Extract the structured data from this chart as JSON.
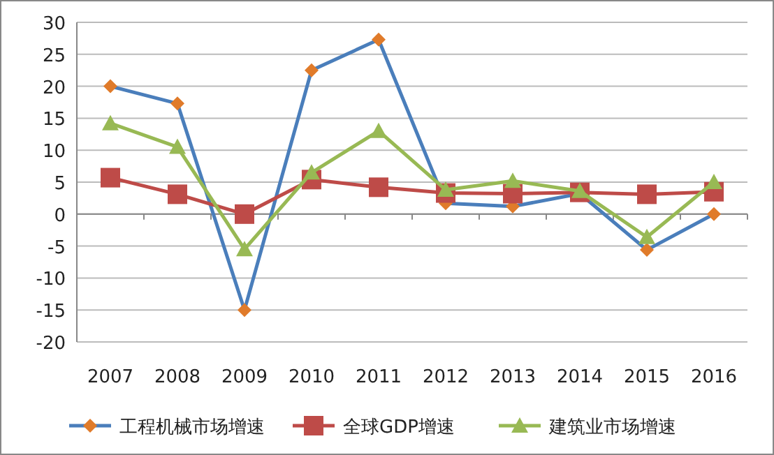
{
  "chart_data": {
    "type": "line",
    "categories": [
      "2007",
      "2008",
      "2009",
      "2010",
      "2011",
      "2012",
      "2013",
      "2014",
      "2015",
      "2016"
    ],
    "ylim": [
      -20,
      30
    ],
    "yticks": [
      -20,
      -15,
      -10,
      -5,
      0,
      5,
      10,
      15,
      20,
      25,
      30
    ],
    "grid": "y",
    "legend": "bottom",
    "series": [
      {
        "name": "工程机械市场增速",
        "color": "#4a7ebb",
        "colors": [
          "#e07b2a",
          "#e07b2a",
          "#e07b2a",
          "#e07b2a",
          "#e07b2a",
          "#e07b2a",
          "#e07b2a",
          "#e07b2a",
          "#e07b2a",
          "#e07b2a"
        ],
        "marker": "diamond",
        "values": [
          20,
          17.3,
          -15,
          22.5,
          27.3,
          1.7,
          1.2,
          3.2,
          -5.6,
          0
        ]
      },
      {
        "name": "全球GDP增速",
        "color": "#be4b48",
        "marker": "square",
        "values": [
          5.7,
          3.1,
          0,
          5.4,
          4.2,
          3.3,
          3.2,
          3.4,
          3.1,
          3.5
        ]
      },
      {
        "name": "建筑业市场增速",
        "color": "#98b954",
        "marker": "triangle",
        "values": [
          14.2,
          10.5,
          -5.5,
          6.5,
          13,
          3.8,
          5.2,
          3.6,
          -3.6,
          5
        ]
      }
    ]
  }
}
